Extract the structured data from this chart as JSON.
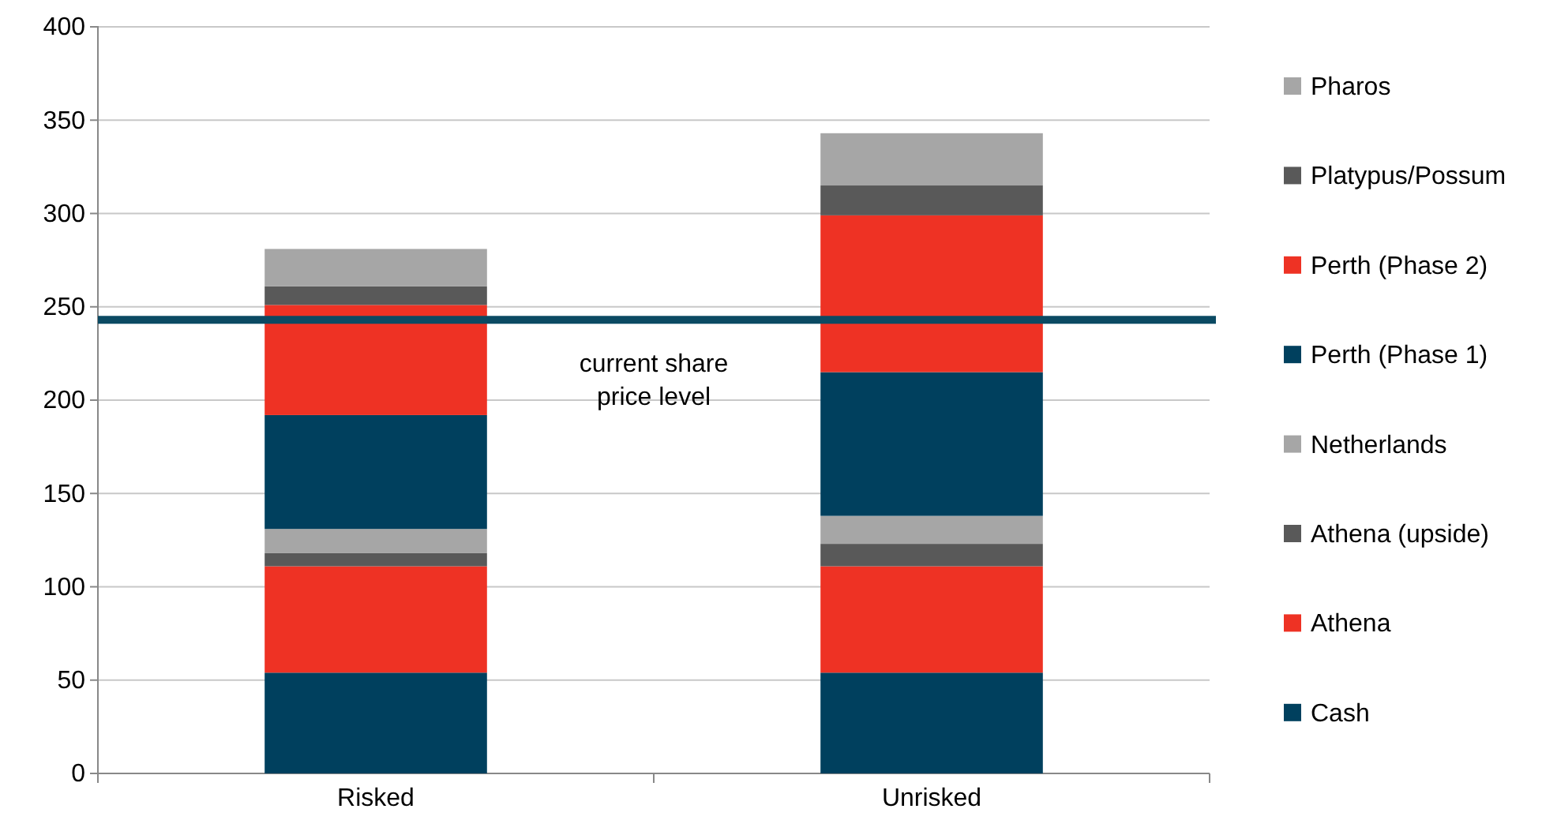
{
  "chart_data": {
    "type": "bar",
    "stacked": true,
    "categories": [
      "Risked",
      "Unrisked"
    ],
    "series": [
      {
        "name": "Cash",
        "color": "#00405e",
        "values": [
          54,
          54
        ]
      },
      {
        "name": "Athena",
        "color": "#ee3224",
        "values": [
          57,
          57
        ]
      },
      {
        "name": "Athena (upside)",
        "color": "#595959",
        "values": [
          7,
          12
        ]
      },
      {
        "name": "Netherlands",
        "color": "#a6a6a6",
        "values": [
          13,
          15
        ]
      },
      {
        "name": "Perth (Phase 1)",
        "color": "#00405e",
        "values": [
          61,
          77
        ]
      },
      {
        "name": "Perth (Phase 2)",
        "color": "#ee3224",
        "values": [
          59,
          84
        ]
      },
      {
        "name": "Platypus/Possum",
        "color": "#595959",
        "values": [
          10,
          16
        ]
      },
      {
        "name": "Pharos",
        "color": "#a6a6a6",
        "values": [
          20,
          28
        ]
      }
    ],
    "ylim": [
      0,
      400
    ],
    "yticks": [
      0,
      50,
      100,
      150,
      200,
      250,
      300,
      350,
      400
    ],
    "grid": "y",
    "legend": "right",
    "ref_lines": [
      {
        "axis": "y",
        "value": 243,
        "label": "current share price level",
        "color": "#0b4a63"
      }
    ]
  }
}
